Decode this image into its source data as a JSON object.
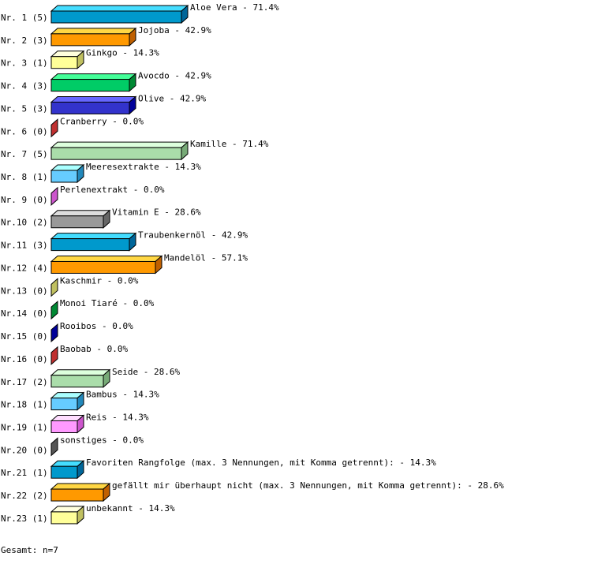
{
  "chart_data": {
    "type": "bar",
    "orientation": "horizontal",
    "style": "3d",
    "rows": [
      {
        "rank": "Nr. 1",
        "count": 5,
        "label": "Aloe Vera",
        "percent": "71.4%"
      },
      {
        "rank": "Nr. 2",
        "count": 3,
        "label": "Jojoba",
        "percent": "42.9%"
      },
      {
        "rank": "Nr. 3",
        "count": 1,
        "label": "Ginkgo",
        "percent": "14.3%"
      },
      {
        "rank": "Nr. 4",
        "count": 3,
        "label": "Avocdo",
        "percent": "42.9%"
      },
      {
        "rank": "Nr. 5",
        "count": 3,
        "label": "Olive",
        "percent": "42.9%"
      },
      {
        "rank": "Nr. 6",
        "count": 0,
        "label": "Cranberry",
        "percent": "0.0%"
      },
      {
        "rank": "Nr. 7",
        "count": 5,
        "label": "Kamille",
        "percent": "71.4%"
      },
      {
        "rank": "Nr. 8",
        "count": 1,
        "label": "Meeresextrakte",
        "percent": "14.3%"
      },
      {
        "rank": "Nr. 9",
        "count": 0,
        "label": "Perlenextrakt",
        "percent": "0.0%"
      },
      {
        "rank": "Nr.10",
        "count": 2,
        "label": "Vitamin E",
        "percent": "28.6%"
      },
      {
        "rank": "Nr.11",
        "count": 3,
        "label": "Traubenkernöl",
        "percent": "42.9%"
      },
      {
        "rank": "Nr.12",
        "count": 4,
        "label": "Mandelöl",
        "percent": "57.1%"
      },
      {
        "rank": "Nr.13",
        "count": 0,
        "label": "Kaschmir",
        "percent": "0.0%"
      },
      {
        "rank": "Nr.14",
        "count": 0,
        "label": "Monoi Tiaré",
        "percent": "0.0%"
      },
      {
        "rank": "Nr.15",
        "count": 0,
        "label": "Rooibos",
        "percent": "0.0%"
      },
      {
        "rank": "Nr.16",
        "count": 0,
        "label": "Baobab",
        "percent": "0.0%"
      },
      {
        "rank": "Nr.17",
        "count": 2,
        "label": "Seide",
        "percent": "28.6%"
      },
      {
        "rank": "Nr.18",
        "count": 1,
        "label": "Bambus",
        "percent": "14.3%"
      },
      {
        "rank": "Nr.19",
        "count": 1,
        "label": "Reis",
        "percent": "14.3%"
      },
      {
        "rank": "Nr.20",
        "count": 0,
        "label": "sonstiges",
        "percent": "0.0%"
      },
      {
        "rank": "Nr.21",
        "count": 1,
        "label": "Favoriten Rangfolge (max. 3 Nennungen, mit Komma getrennt):",
        "percent": "14.3%"
      },
      {
        "rank": "Nr.22",
        "count": 2,
        "label": "gefällt mir überhaupt nicht (max. 3 Nennungen, mit Komma getrennt):",
        "percent": "28.6%"
      },
      {
        "rank": "Nr.23",
        "count": 1,
        "label": "unbekannt",
        "percent": "14.3%"
      }
    ],
    "palette": [
      {
        "front": "#0099cc",
        "top": "#44ddff",
        "side": "#006699"
      },
      {
        "front": "#ff9900",
        "top": "#ffd744",
        "side": "#c06000"
      },
      {
        "front": "#ffff99",
        "top": "#ffffdd",
        "side": "#c0c060"
      },
      {
        "front": "#00cc66",
        "top": "#44ff99",
        "side": "#008833"
      },
      {
        "front": "#3333cc",
        "top": "#6666ff",
        "side": "#000099"
      },
      {
        "front": "#cc3333",
        "top": "#ff6666",
        "side": "#c03030"
      },
      {
        "front": "#aaddaa",
        "top": "#ddffdd",
        "side": "#77aa77"
      },
      {
        "front": "#66ccff",
        "top": "#aaffff",
        "side": "#2288bb"
      },
      {
        "front": "#ff99ff",
        "top": "#ffddff",
        "side": "#cc55cc"
      },
      {
        "front": "#999999",
        "top": "#dddddd",
        "side": "#666666"
      }
    ],
    "palette_order": [
      0,
      1,
      2,
      3,
      4,
      5,
      6,
      7,
      8,
      9,
      0,
      1,
      2,
      3,
      4,
      5,
      6,
      7,
      8,
      5,
      0,
      1,
      2
    ],
    "zero_colors": {
      "13": "#c0c060",
      "14": "#008833",
      "15": "#000099",
      "16": "#c03030",
      "20": "#555555",
      "9": "#cc55cc",
      "6": "#c03030"
    },
    "total": "Gesamt: n=7"
  }
}
